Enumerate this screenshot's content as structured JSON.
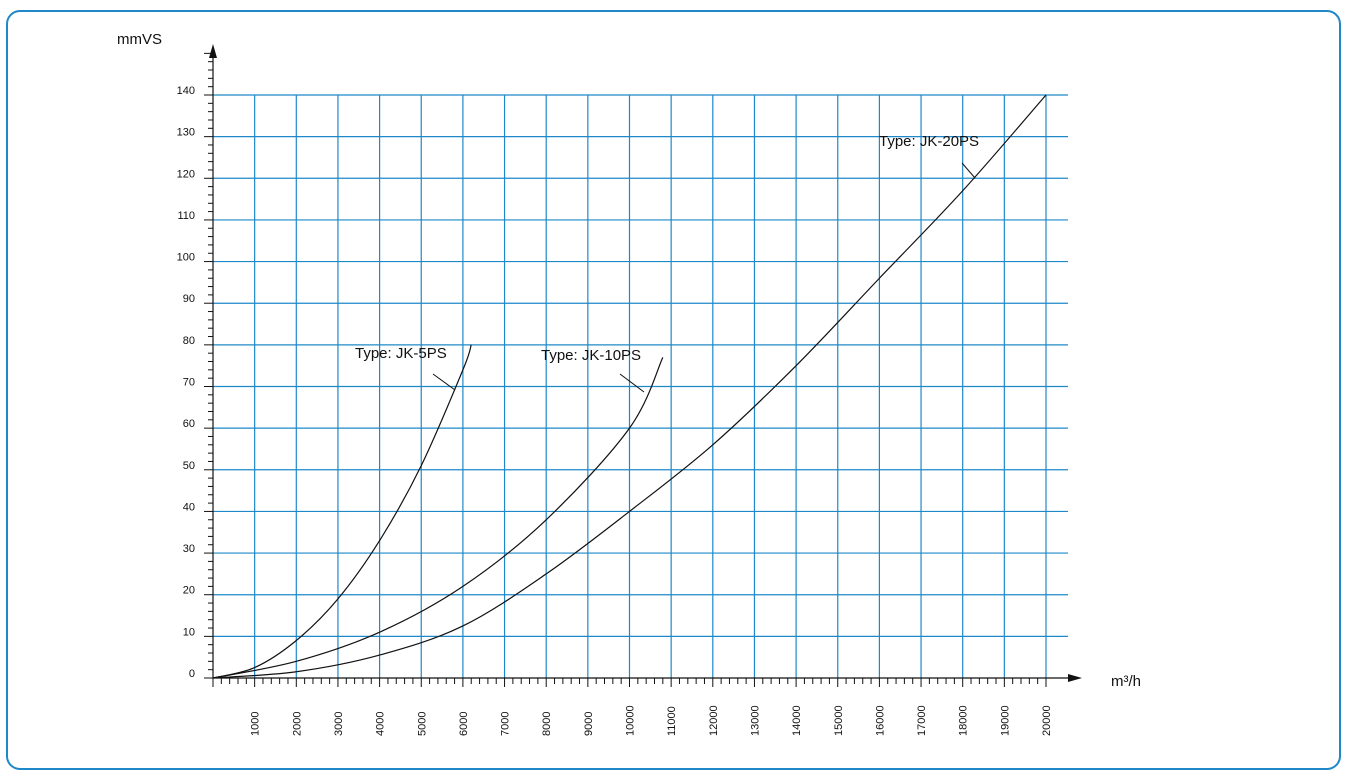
{
  "chart_data": {
    "type": "line",
    "title": "",
    "xlabel": "m³/h",
    "ylabel": "mmVS",
    "xlim": [
      0,
      20000
    ],
    "ylim": [
      0,
      140
    ],
    "x_ticks": [
      1000,
      2000,
      3000,
      4000,
      5000,
      6000,
      7000,
      8000,
      9000,
      10000,
      11000,
      12000,
      13000,
      14000,
      15000,
      16000,
      17000,
      18000,
      19000,
      20000
    ],
    "y_ticks": [
      0,
      10,
      20,
      30,
      40,
      50,
      60,
      70,
      80,
      90,
      100,
      110,
      120,
      130,
      140
    ],
    "grid": true,
    "legend": "none",
    "series": [
      {
        "name": "Type: JK-5PS",
        "x": [
          0,
          1000,
          2000,
          3000,
          4000,
          5000,
          6000,
          6200
        ],
        "y": [
          0,
          2.5,
          9,
          19,
          33,
          51,
          74,
          80
        ]
      },
      {
        "name": "Type: JK-10PS",
        "x": [
          0,
          2000,
          4000,
          6000,
          8000,
          10000,
          10800
        ],
        "y": [
          0,
          4,
          11,
          22,
          38,
          60,
          77
        ]
      },
      {
        "name": "Type: JK-20PS",
        "x": [
          0,
          2000,
          4000,
          6000,
          8000,
          10000,
          12000,
          14000,
          16000,
          18000,
          20000
        ],
        "y": [
          0,
          1.5,
          5.5,
          12.5,
          25,
          40,
          56,
          75,
          96,
          117,
          140
        ]
      }
    ]
  },
  "colors": {
    "grid": "#1e88c8",
    "border": "#1e88c8",
    "axis": "#111111",
    "curve": "#111111"
  }
}
